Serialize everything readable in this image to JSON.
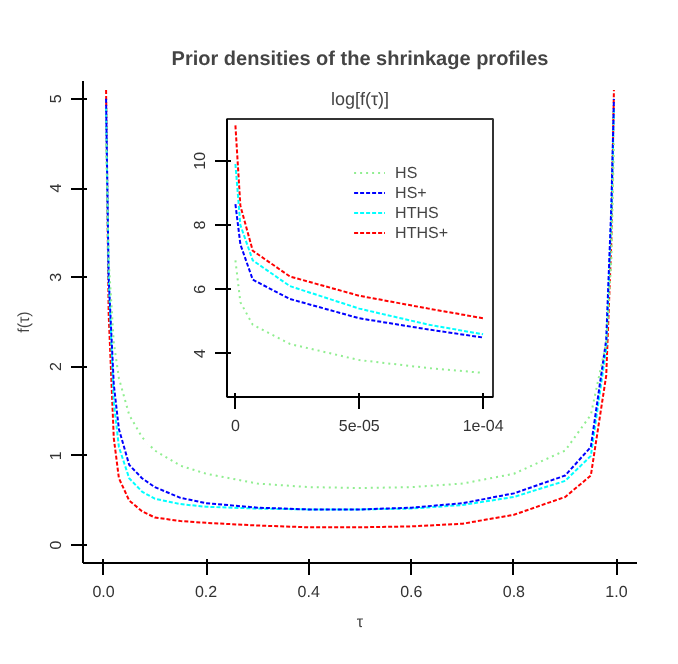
{
  "chart_data": [
    {
      "type": "line",
      "title": "Prior densities of the shrinkage profiles",
      "xlabel": "τ",
      "ylabel": "f(τ)",
      "x": [
        0.005,
        0.01,
        0.02,
        0.03,
        0.05,
        0.075,
        0.1,
        0.15,
        0.2,
        0.3,
        0.4,
        0.5,
        0.6,
        0.7,
        0.8,
        0.9,
        0.95,
        0.98,
        0.99,
        0.995
      ],
      "xlim": [
        -0.04,
        1.04
      ],
      "ylim": [
        -0.2,
        5.2
      ],
      "xticks": [
        {
          "value": 0,
          "label": "0.0"
        },
        0.2,
        0.4,
        0.6,
        0.8,
        {
          "value": 1,
          "label": "1.0"
        }
      ],
      "yticks": [
        0,
        1,
        2,
        3,
        4,
        5
      ],
      "grid": false,
      "legend": false,
      "series": [
        {
          "color": "#90ee90",
          "line_style": "dotted",
          "values": [
            4.5,
            3.2,
            2.27,
            1.87,
            1.46,
            1.21,
            1.06,
            0.89,
            0.8,
            0.69,
            0.65,
            0.64,
            0.65,
            0.69,
            0.8,
            1.06,
            1.46,
            2.27,
            3.2,
            4.5
          ]
        },
        {
          "color": "#0000ff",
          "line_style": "dashed",
          "values": [
            5.0,
            3.0,
            1.8,
            1.3,
            0.9,
            0.75,
            0.65,
            0.53,
            0.47,
            0.42,
            0.4,
            0.4,
            0.42,
            0.47,
            0.58,
            0.78,
            1.1,
            2.3,
            3.8,
            5.0
          ]
        },
        {
          "color": "#00ffff",
          "line_style": "dashed",
          "values": [
            4.9,
            3.0,
            1.6,
            1.1,
            0.75,
            0.6,
            0.52,
            0.46,
            0.43,
            0.41,
            0.4,
            0.4,
            0.41,
            0.45,
            0.54,
            0.72,
            1.0,
            2.2,
            3.7,
            4.9
          ]
        },
        {
          "color": "#ff0000",
          "line_style": "dashed",
          "values": [
            5.1,
            2.6,
            1.2,
            0.75,
            0.5,
            0.38,
            0.31,
            0.27,
            0.25,
            0.22,
            0.2,
            0.2,
            0.21,
            0.24,
            0.34,
            0.54,
            0.78,
            1.9,
            3.4,
            5.1
          ]
        }
      ]
    },
    {
      "type": "line",
      "title": "log[f(τ)]",
      "x": [
        0,
        2e-06,
        7e-06,
        2.2e-05,
        5e-05,
        7.8e-05,
        0.0001
      ],
      "xlim": [
        -3.4e-06,
        0.000104
      ],
      "ylim": [
        2.65,
        11.3
      ],
      "xticks": [
        0,
        {
          "value": 5e-05,
          "label": "5e-05"
        },
        {
          "value": 0.0001,
          "label": "1e-04"
        }
      ],
      "yticks": [
        4,
        6,
        8,
        10
      ],
      "grid": false,
      "legend": "top right",
      "series": [
        {
          "name": "HS",
          "color": "#90ee90",
          "line_style": "dotted",
          "values": [
            6.9,
            5.6,
            4.9,
            4.3,
            3.8,
            3.55,
            3.4
          ]
        },
        {
          "name": "HS+",
          "color": "#0000ff",
          "line_style": "dashed",
          "values": [
            8.65,
            7.4,
            6.3,
            5.7,
            5.1,
            4.75,
            4.5
          ]
        },
        {
          "name": "HTHS",
          "color": "#00ffff",
          "line_style": "dashed",
          "values": [
            9.9,
            8.0,
            6.9,
            6.1,
            5.4,
            4.9,
            4.6
          ]
        },
        {
          "name": "HTHS+",
          "color": "#ff0000",
          "line_style": "dashed",
          "values": [
            11.1,
            8.6,
            7.2,
            6.4,
            5.8,
            5.4,
            5.1
          ]
        }
      ]
    }
  ]
}
